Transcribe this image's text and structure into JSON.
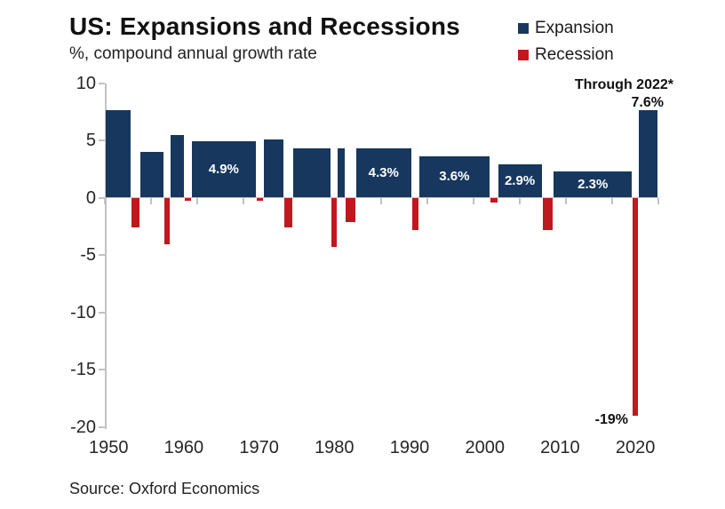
{
  "title": "US: Expansions and Recessions",
  "subtitle": "%, compound annual growth rate",
  "source": "Source: Oxford Economics",
  "legend": {
    "expansion": "Expansion",
    "recession": "Recession"
  },
  "annotations": {
    "through_2022": "Through 2022*",
    "final_expansion": "7.6%",
    "covid_recession": "-19%"
  },
  "colors": {
    "expansion": "#17375e",
    "recession": "#c0181f",
    "axis": "#c2c2c2",
    "text": "#262626",
    "bar_label": "#ffffff"
  },
  "chart_data": {
    "type": "bar",
    "title": "US: Expansions and Recessions",
    "ylabel": "%, compound annual growth rate",
    "ylim": [
      -20,
      10
    ],
    "yticks": [
      10,
      5,
      0,
      -5,
      -10,
      -15,
      -20
    ],
    "xticks": [
      1950,
      1960,
      1970,
      1980,
      1990,
      2000,
      2010,
      2020
    ],
    "x_range_years": [
      1949.5,
      2023
    ],
    "grid": false,
    "legend_position": "top-right",
    "series_names": [
      "Expansion",
      "Recession"
    ],
    "bars": [
      {
        "series": "Expansion",
        "start": 1949.6,
        "end": 1953.0,
        "value": 7.6
      },
      {
        "series": "Recession",
        "start": 1953.0,
        "end": 1954.2,
        "value": -2.6
      },
      {
        "series": "Expansion",
        "start": 1954.2,
        "end": 1957.4,
        "value": 4.0
      },
      {
        "series": "Recession",
        "start": 1957.4,
        "end": 1958.2,
        "value": -4.1
      },
      {
        "series": "Expansion",
        "start": 1958.2,
        "end": 1960.1,
        "value": 5.5
      },
      {
        "series": "Recession",
        "start": 1960.1,
        "end": 1961.0,
        "value": -0.3
      },
      {
        "series": "Expansion",
        "start": 1961.0,
        "end": 1969.6,
        "value": 4.9,
        "label": "4.9%"
      },
      {
        "series": "Recession",
        "start": 1969.6,
        "end": 1970.6,
        "value": -0.3
      },
      {
        "series": "Expansion",
        "start": 1970.6,
        "end": 1973.3,
        "value": 5.1
      },
      {
        "series": "Recession",
        "start": 1973.3,
        "end": 1974.5,
        "value": -2.6
      },
      {
        "series": "Expansion",
        "start": 1974.5,
        "end": 1979.6,
        "value": 4.3
      },
      {
        "series": "Recession",
        "start": 1979.6,
        "end": 1980.4,
        "value": -4.3
      },
      {
        "series": "Expansion",
        "start": 1980.4,
        "end": 1981.4,
        "value": 4.3
      },
      {
        "series": "Recession",
        "start": 1981.4,
        "end": 1982.8,
        "value": -2.1
      },
      {
        "series": "Expansion",
        "start": 1982.8,
        "end": 1990.3,
        "value": 4.3,
        "label": "4.3%"
      },
      {
        "series": "Recession",
        "start": 1990.3,
        "end": 1991.2,
        "value": -2.8
      },
      {
        "series": "Expansion",
        "start": 1991.2,
        "end": 2000.7,
        "value": 3.6,
        "label": "3.6%"
      },
      {
        "series": "Recession",
        "start": 2000.7,
        "end": 2001.7,
        "value": -0.4
      },
      {
        "series": "Expansion",
        "start": 2001.7,
        "end": 2007.6,
        "value": 2.9,
        "label": "2.9%"
      },
      {
        "series": "Recession",
        "start": 2007.6,
        "end": 2009.1,
        "value": -2.8
      },
      {
        "series": "Expansion",
        "start": 2009.1,
        "end": 2019.6,
        "value": 2.3,
        "label": "2.3%"
      },
      {
        "series": "Recession",
        "start": 2019.6,
        "end": 2020.4,
        "value": -19
      },
      {
        "series": "Expansion",
        "start": 2020.4,
        "end": 2023.0,
        "value": 7.6
      }
    ]
  }
}
